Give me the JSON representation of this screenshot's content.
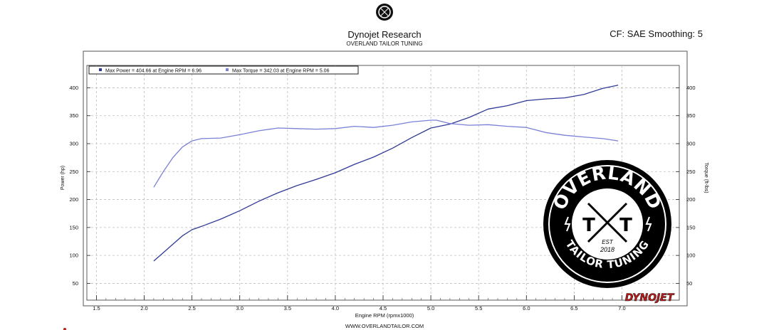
{
  "header": {
    "title": "Dynojet Research",
    "subtitle": "OVERLAND TAILOR TUNING",
    "right_info": "CF: SAE Smoothing: 5"
  },
  "footer": {
    "website": "WWW.OVERLANDTAILOR.COM"
  },
  "branding": {
    "dynojet_logo": "DYNOJET",
    "seal_name": "OVERLAND",
    "seal_initials_left": "T",
    "seal_initials_right": "T",
    "seal_est": "EST",
    "seal_year": "2018",
    "seal_bottom": "TAILOR TUNING"
  },
  "colors": {
    "power": "#2f3a96",
    "torque": "#7a80d6",
    "grid": "#bdbdbd",
    "seal": "#000000"
  },
  "chart_data": {
    "type": "line",
    "xlabel": "Engine RPM (rpmx1000)",
    "ylabel_left": "Power (hp)",
    "ylabel_right": "Torque (ft-lbs)",
    "xlim": [
      1.4,
      7.6
    ],
    "ylim": [
      20,
      440
    ],
    "x_ticks": [
      "1.5",
      "2.0",
      "2.5",
      "3.0",
      "3.5",
      "4.0",
      "4.5",
      "5.0",
      "5.5",
      "6.0",
      "6.5",
      "7.0"
    ],
    "y_ticks": [
      "50",
      "100",
      "150",
      "200",
      "250",
      "300",
      "350",
      "400"
    ],
    "grid": true,
    "legend_position": "top-left",
    "legend": [
      "Max Power = 404.66 at Engine RPM = 6.96",
      "Max Torque = 342.03 at Engine RPM = 5.06"
    ],
    "series": [
      {
        "name": "Max Power",
        "x": [
          2.1,
          2.2,
          2.3,
          2.4,
          2.5,
          2.6,
          2.8,
          3.0,
          3.2,
          3.4,
          3.6,
          3.8,
          4.0,
          4.2,
          4.4,
          4.6,
          4.8,
          5.0,
          5.2,
          5.4,
          5.6,
          5.8,
          6.0,
          6.2,
          6.4,
          6.6,
          6.8,
          6.96
        ],
        "values": [
          90,
          105,
          120,
          135,
          146,
          152,
          165,
          180,
          197,
          212,
          225,
          236,
          248,
          263,
          276,
          292,
          311,
          328,
          335,
          347,
          362,
          368,
          377,
          380,
          382,
          388,
          399,
          404.66
        ]
      },
      {
        "name": "Max Torque",
        "x": [
          2.1,
          2.2,
          2.3,
          2.4,
          2.5,
          2.6,
          2.8,
          3.0,
          3.2,
          3.4,
          3.6,
          3.8,
          4.0,
          4.2,
          4.4,
          4.6,
          4.8,
          5.0,
          5.06,
          5.2,
          5.4,
          5.6,
          5.8,
          6.0,
          6.2,
          6.4,
          6.6,
          6.8,
          6.96
        ],
        "values": [
          222,
          250,
          275,
          294,
          305,
          309,
          310,
          316,
          323,
          328,
          327,
          326,
          327,
          331,
          329,
          333,
          339,
          342,
          342.03,
          336,
          333,
          334,
          331,
          329,
          320,
          315,
          312,
          309,
          305
        ]
      }
    ]
  }
}
